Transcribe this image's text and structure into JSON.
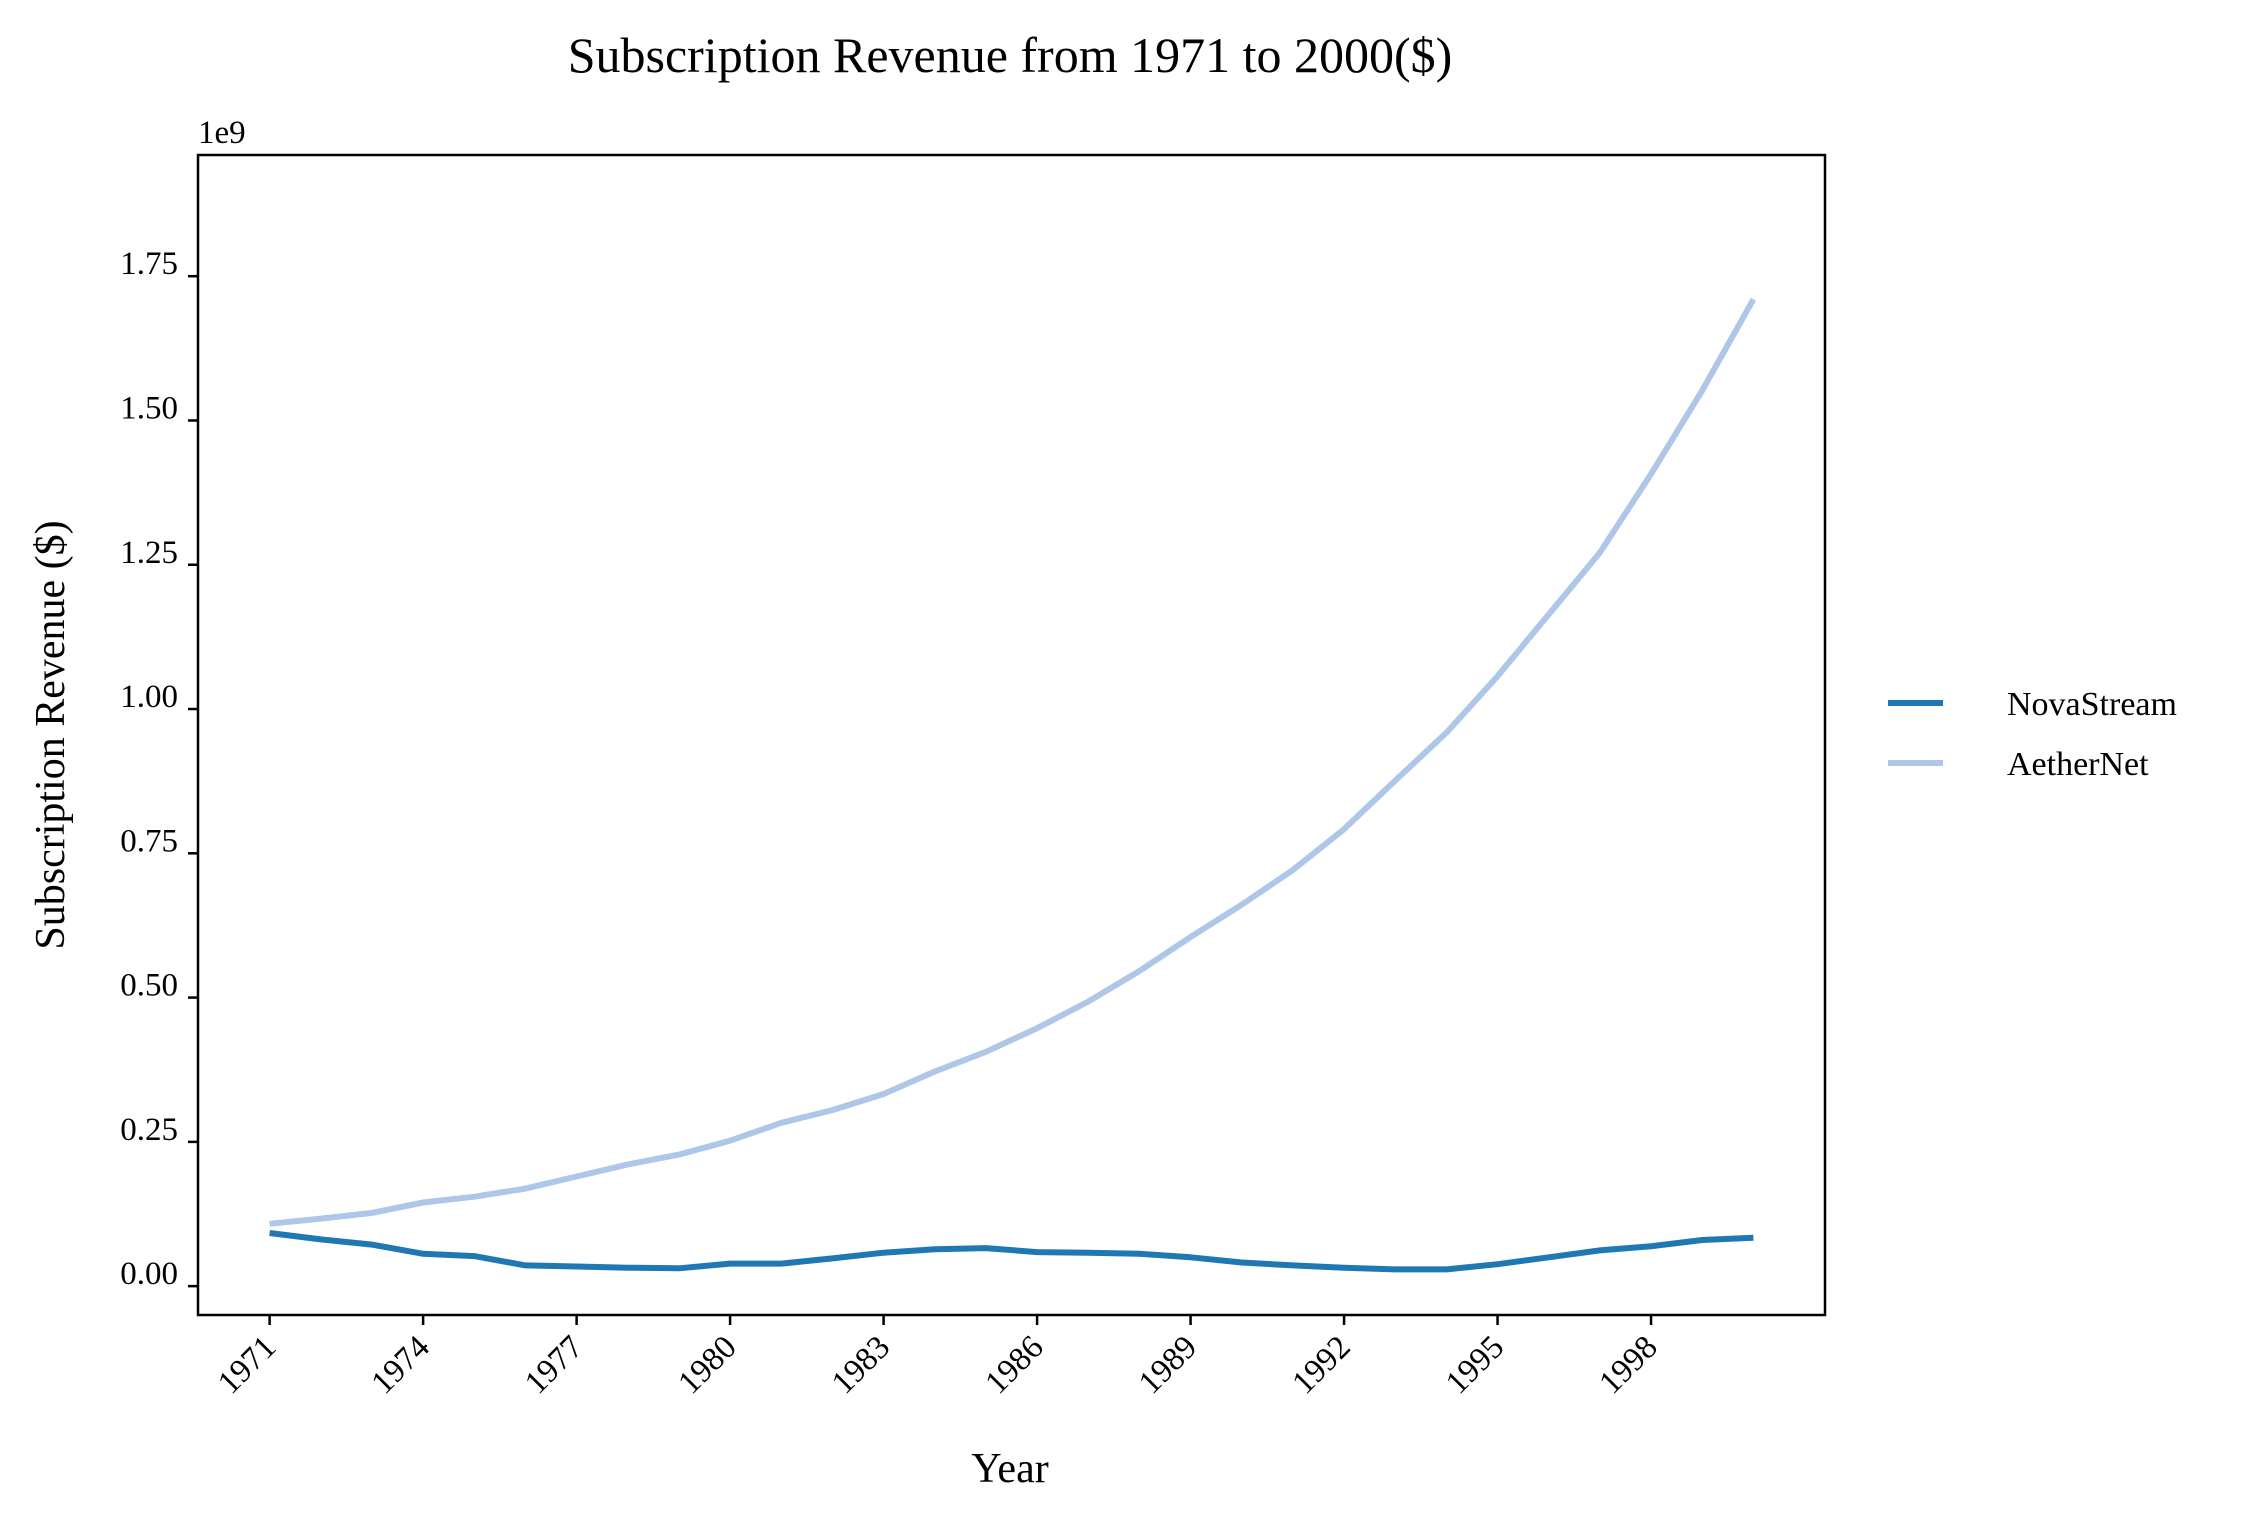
{
  "chart_data": {
    "type": "line",
    "title": "Subscription Revenue from 1971 to 2000($)",
    "xlabel": "Year",
    "ylabel": "Subscription Revenue ($)",
    "y_offset_label": "1e9",
    "x": [
      1971,
      1972,
      1973,
      1974,
      1975,
      1976,
      1977,
      1978,
      1979,
      1980,
      1981,
      1982,
      1983,
      1984,
      1985,
      1986,
      1987,
      1988,
      1989,
      1990,
      1991,
      1992,
      1993,
      1994,
      1995,
      1996,
      1997,
      1998,
      1999,
      2000
    ],
    "xlim": [
      1969.6,
      2001.4
    ],
    "ylim": [
      -0.05,
      1.96
    ],
    "y_unit_scale": 1000000000,
    "x_ticks": [
      1971,
      1974,
      1977,
      1980,
      1983,
      1986,
      1989,
      1992,
      1995,
      1998
    ],
    "x_tick_labels": [
      "1971",
      "1974",
      "1977",
      "1980",
      "1983",
      "1986",
      "1989",
      "1992",
      "1995",
      "1998"
    ],
    "y_ticks": [
      0,
      0.25,
      0.5,
      0.75,
      1.0,
      1.25,
      1.5,
      1.75
    ],
    "y_tick_labels": [
      "0.00",
      "0.25",
      "0.50",
      "0.75",
      "1.00",
      "1.25",
      "1.50",
      "1.75"
    ],
    "series": [
      {
        "name": "NovaStream",
        "color": "#1f77b4",
        "values": [
          0.092,
          0.081,
          0.072,
          0.056,
          0.052,
          0.036,
          0.034,
          0.032,
          0.031,
          0.039,
          0.039,
          0.048,
          0.058,
          0.064,
          0.066,
          0.059,
          0.058,
          0.056,
          0.05,
          0.041,
          0.036,
          0.032,
          0.029,
          0.029,
          0.038,
          0.05,
          0.062,
          0.069,
          0.08,
          0.084
        ]
      },
      {
        "name": "AetherNet",
        "color": "#aec7e8",
        "values": [
          0.108,
          0.117,
          0.127,
          0.145,
          0.155,
          0.169,
          0.19,
          0.211,
          0.228,
          0.252,
          0.283,
          0.305,
          0.333,
          0.372,
          0.406,
          0.447,
          0.493,
          0.546,
          0.605,
          0.661,
          0.721,
          0.792,
          0.876,
          0.959,
          1.057,
          1.164,
          1.271,
          1.407,
          1.552,
          1.71
        ]
      }
    ],
    "legend_position": "right",
    "grid": false
  }
}
